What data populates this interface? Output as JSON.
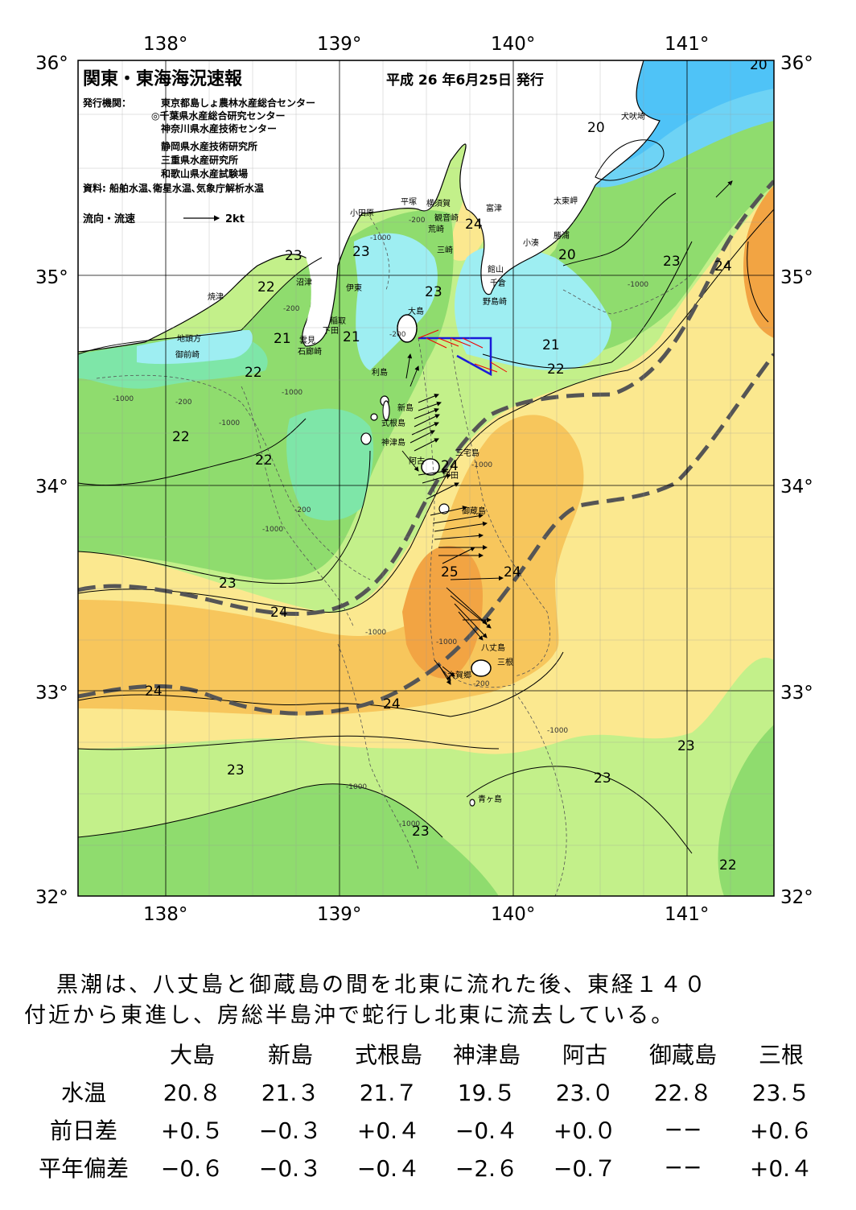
{
  "map": {
    "title": "関東・東海海況速報",
    "issue_date": "平成 26 年6月25日 発行",
    "issuer_label": "発行機関：",
    "issuers": [
      "東京都島しょ農林水産総合センター",
      "◎千葉県水産総合研究センター",
      "神奈川県水産技術センター",
      "静岡県水産技術研究所",
      "三重県水産研究所",
      "和歌山県水産試験場"
    ],
    "sources": "資料: 船舶水温､衛星水温､気象庁解析水温",
    "flow_legend": "流向・流速",
    "flow_scale": "2kt",
    "lon_labels": [
      "138°",
      "139°",
      "140°",
      "141°"
    ],
    "lat_labels": [
      "36°",
      "35°",
      "34°",
      "33°",
      "32°"
    ],
    "place_names": {
      "inubozaki": "犬吠埼",
      "taitozaki": "太東岬",
      "katsuura": "勝浦",
      "kominato": "小湊",
      "futtsu": "富津",
      "yokosuka": "横須賀",
      "kannonzaki": "観音崎",
      "araizaki": "荒崎",
      "misaki": "三崎",
      "hiratsuka": "平塚",
      "odawara": "小田原",
      "tateyama": "館山",
      "chikura": "千倉",
      "nojimazaki": "野島崎",
      "numazu": "沼津",
      "ito": "伊東",
      "yaizu": "焼津",
      "jitogata": "地頭方",
      "omaezaki": "御前崎",
      "inatori": "稲取",
      "shimoda": "下田",
      "kumomi": "雲見",
      "irozaki": "石廊崎",
      "oshima": "大島",
      "toshima": "利島",
      "niijima": "新島",
      "shikinejima": "式根島",
      "kozushima": "神津島",
      "ako": "阿古",
      "tsubota": "坪田",
      "miyakejima": "三宅島",
      "mikurajima": "御蔵島",
      "hachijojima": "八丈島",
      "mitsune": "三根",
      "okago": "大賀郷",
      "aogashima": "青ヶ島"
    },
    "isotherm_labels": {
      "t20_inubo": "20",
      "t20_corner": "20",
      "t20_boso": "20",
      "t21_a": "21",
      "t21_b": "21",
      "t21_c": "21",
      "t22_a": "22",
      "t22_b": "22",
      "t22_c": "22",
      "t22_d": "22",
      "t22_e": "22",
      "t22_f": "22",
      "t23_a": "23",
      "t23_b": "23",
      "t23_c": "23",
      "t23_d": "23",
      "t23_e": "23",
      "t23_f": "23",
      "t23_g": "23",
      "t23_h": "23",
      "t24_a": "24",
      "t24_b": "24",
      "t24_c": "24",
      "t24_d": "24",
      "t24_e": "24",
      "t24_f": "24",
      "t24_g": "24",
      "t25": "25"
    },
    "depth_label_200": "-200",
    "depth_label_1000": "-1000",
    "colors": {
      "sea_18": "#4fc3f7",
      "sea_19": "#6ed3f5",
      "sea_20": "#9eeef2",
      "sea_21": "#7ee6a8",
      "sea_22": "#8fdc6e",
      "sea_23": "#c3f08a",
      "sea_24": "#fbe88f",
      "sea_25": "#f7c65c",
      "sea_26": "#f2a443",
      "land": "#ffffff",
      "kuroshio_axis": "#555555"
    }
  },
  "summary": {
    "line1": "黒潮は、八丈島と御蔵島の間を北東に流れた後、東経１４０",
    "line2": "付近から東進し、房総半島沖で蛇行し北東に流去している。"
  },
  "table": {
    "columns": [
      "大島",
      "新島",
      "式根島",
      "神津島",
      "阿古",
      "御蔵島",
      "三根"
    ],
    "rows": [
      {
        "label": "水温",
        "values": [
          "20.８",
          "21.３",
          "21.７",
          "19.５",
          "23.０",
          "22.８",
          "23.５"
        ]
      },
      {
        "label": "前日差",
        "values": [
          "+0.５",
          "−0.３",
          "+0.４",
          "−0.４",
          "+0.０",
          "−−",
          "+0.６"
        ]
      },
      {
        "label": "平年偏差",
        "values": [
          "−0.６",
          "−0.３",
          "−0.４",
          "−2.６",
          "−0.７",
          "−−",
          "+0.４"
        ]
      }
    ]
  }
}
